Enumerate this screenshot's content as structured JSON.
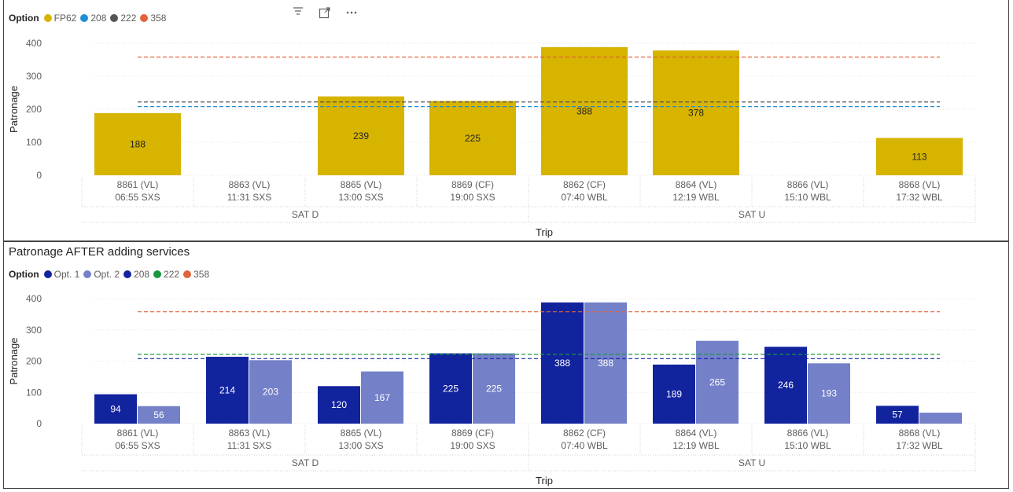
{
  "colors": {
    "fp62": "#d7b400",
    "opt1": "#12239e",
    "opt2": "#7480c8",
    "line208_top": "#1f8fd4",
    "line208_bottom": "#12239e",
    "line222_top": "#555555",
    "line222_bottom": "#1a9641",
    "line358": "#e1643c"
  },
  "toolbar": {
    "filter_icon": "filter-icon",
    "focus_icon": "focus-mode-icon",
    "more_icon": "more-options-icon"
  },
  "chart1": {
    "legend": {
      "title": "Option",
      "items": [
        {
          "label": "FP62",
          "color": "#d7b400"
        },
        {
          "label": "208",
          "color": "#1f8fd4"
        },
        {
          "label": "222",
          "color": "#555555"
        },
        {
          "label": "358",
          "color": "#e1643c"
        }
      ]
    }
  },
  "chart2": {
    "title": "Patronage AFTER adding services",
    "legend": {
      "title": "Option",
      "items": [
        {
          "label": "Opt. 1",
          "color": "#12239e"
        },
        {
          "label": "Opt. 2",
          "color": "#7480c8"
        },
        {
          "label": "208",
          "color": "#12239e"
        },
        {
          "label": "222",
          "color": "#1a9641"
        },
        {
          "label": "358",
          "color": "#e1643c"
        }
      ]
    }
  },
  "chart_data": [
    {
      "type": "bar",
      "xlabel": "Trip",
      "ylabel": "Patronage",
      "ylim": [
        0,
        400
      ],
      "yticks": [
        0,
        100,
        200,
        300,
        400
      ],
      "grid": true,
      "legend_position": "top-left",
      "categories": [
        {
          "trip": "8861 (VL)",
          "time": "06:55 SXS",
          "group": "SAT D"
        },
        {
          "trip": "8863 (VL)",
          "time": "11:31 SXS",
          "group": "SAT D"
        },
        {
          "trip": "8865 (VL)",
          "time": "13:00 SXS",
          "group": "SAT D"
        },
        {
          "trip": "8869 (CF)",
          "time": "19:00 SXS",
          "group": "SAT D"
        },
        {
          "trip": "8862 (CF)",
          "time": "07:40 WBL",
          "group": "SAT U"
        },
        {
          "trip": "8864 (VL)",
          "time": "12:19 WBL",
          "group": "SAT U"
        },
        {
          "trip": "8866 (VL)",
          "time": "15:10 WBL",
          "group": "SAT U"
        },
        {
          "trip": "8868 (VL)",
          "time": "17:32 WBL",
          "group": "SAT U"
        }
      ],
      "groups": [
        "SAT D",
        "SAT U"
      ],
      "series": [
        {
          "name": "FP62",
          "values": [
            188,
            null,
            239,
            225,
            388,
            378,
            null,
            113
          ],
          "labels": [
            "188",
            "",
            "239",
            "225",
            "388",
            "378",
            "",
            "113"
          ],
          "color": "#d7b400"
        }
      ],
      "reference_lines": [
        {
          "name": "208",
          "value": 208,
          "color": "#1f8fd4"
        },
        {
          "name": "222",
          "value": 222,
          "color": "#555555"
        },
        {
          "name": "358",
          "value": 358,
          "color": "#e1643c"
        }
      ]
    },
    {
      "type": "bar",
      "title": "Patronage AFTER adding services",
      "xlabel": "Trip",
      "ylabel": "Patronage",
      "ylim": [
        0,
        400
      ],
      "yticks": [
        0,
        100,
        200,
        300,
        400
      ],
      "grid": true,
      "legend_position": "top-left",
      "categories": [
        {
          "trip": "8861 (VL)",
          "time": "06:55 SXS",
          "group": "SAT D"
        },
        {
          "trip": "8863 (VL)",
          "time": "11:31 SXS",
          "group": "SAT D"
        },
        {
          "trip": "8865 (VL)",
          "time": "13:00 SXS",
          "group": "SAT D"
        },
        {
          "trip": "8869 (CF)",
          "time": "19:00 SXS",
          "group": "SAT D"
        },
        {
          "trip": "8862 (CF)",
          "time": "07:40 WBL",
          "group": "SAT U"
        },
        {
          "trip": "8864 (VL)",
          "time": "12:19 WBL",
          "group": "SAT U"
        },
        {
          "trip": "8866 (VL)",
          "time": "15:10 WBL",
          "group": "SAT U"
        },
        {
          "trip": "8868 (VL)",
          "time": "17:32 WBL",
          "group": "SAT U"
        }
      ],
      "groups": [
        "SAT D",
        "SAT U"
      ],
      "series": [
        {
          "name": "Opt. 1",
          "values": [
            94,
            214,
            120,
            225,
            388,
            189,
            246,
            57
          ],
          "labels": [
            "94",
            "214",
            "120",
            "225",
            "388",
            "189",
            "246",
            "57"
          ],
          "color": "#12239e"
        },
        {
          "name": "Opt. 2",
          "values": [
            56,
            203,
            167,
            225,
            388,
            265,
            193,
            35
          ],
          "labels": [
            "56",
            "203",
            "167",
            "225",
            "388",
            "265",
            "193",
            ""
          ],
          "color": "#7480c8"
        }
      ],
      "reference_lines": [
        {
          "name": "208",
          "value": 208,
          "color": "#12239e"
        },
        {
          "name": "222",
          "value": 222,
          "color": "#1a9641"
        },
        {
          "name": "358",
          "value": 358,
          "color": "#e1643c"
        }
      ]
    }
  ]
}
